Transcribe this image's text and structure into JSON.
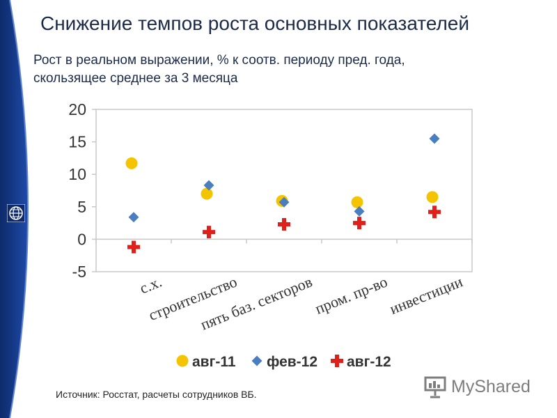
{
  "slide": {
    "title": "Снижение темпов роста основных показателей",
    "subtitle_line1": "Рост в реальном выражении, % к соотв. периоду пред. года,",
    "subtitle_line2": "скользящее среднее за 3 месяца",
    "source": "Источник: Росстат, расчеты сотрудников ВБ.",
    "watermark": "MyShared",
    "logo_icon": "globe-icon"
  },
  "colors": {
    "band_dark": "#0d2a6b",
    "band_light": "#1f4aa8",
    "series_1": "#f5c400",
    "series_2": "#4a7ebf",
    "series_3": "#e0201b"
  },
  "chart_data": {
    "type": "scatter",
    "categories": [
      "с.х.",
      "строительство",
      "пять баз. секторов",
      "пром. пр-во",
      "инвестиции"
    ],
    "ylim": [
      -5,
      20
    ],
    "yticks": [
      "20",
      "15",
      "10",
      "5",
      "0",
      "-5"
    ],
    "ytick_values": [
      20,
      15,
      10,
      5,
      0,
      -5
    ],
    "grid": false,
    "legend_position": "bottom",
    "series": [
      {
        "name": "авг-11",
        "marker": "circle",
        "values": [
          11.7,
          7.0,
          5.9,
          5.7,
          6.5
        ]
      },
      {
        "name": "фев-12",
        "marker": "diamond",
        "values": [
          3.4,
          8.3,
          5.7,
          4.3,
          15.5
        ]
      },
      {
        "name": "авг-12",
        "marker": "cross",
        "values": [
          -1.2,
          1.1,
          2.3,
          2.5,
          4.2
        ]
      }
    ]
  }
}
